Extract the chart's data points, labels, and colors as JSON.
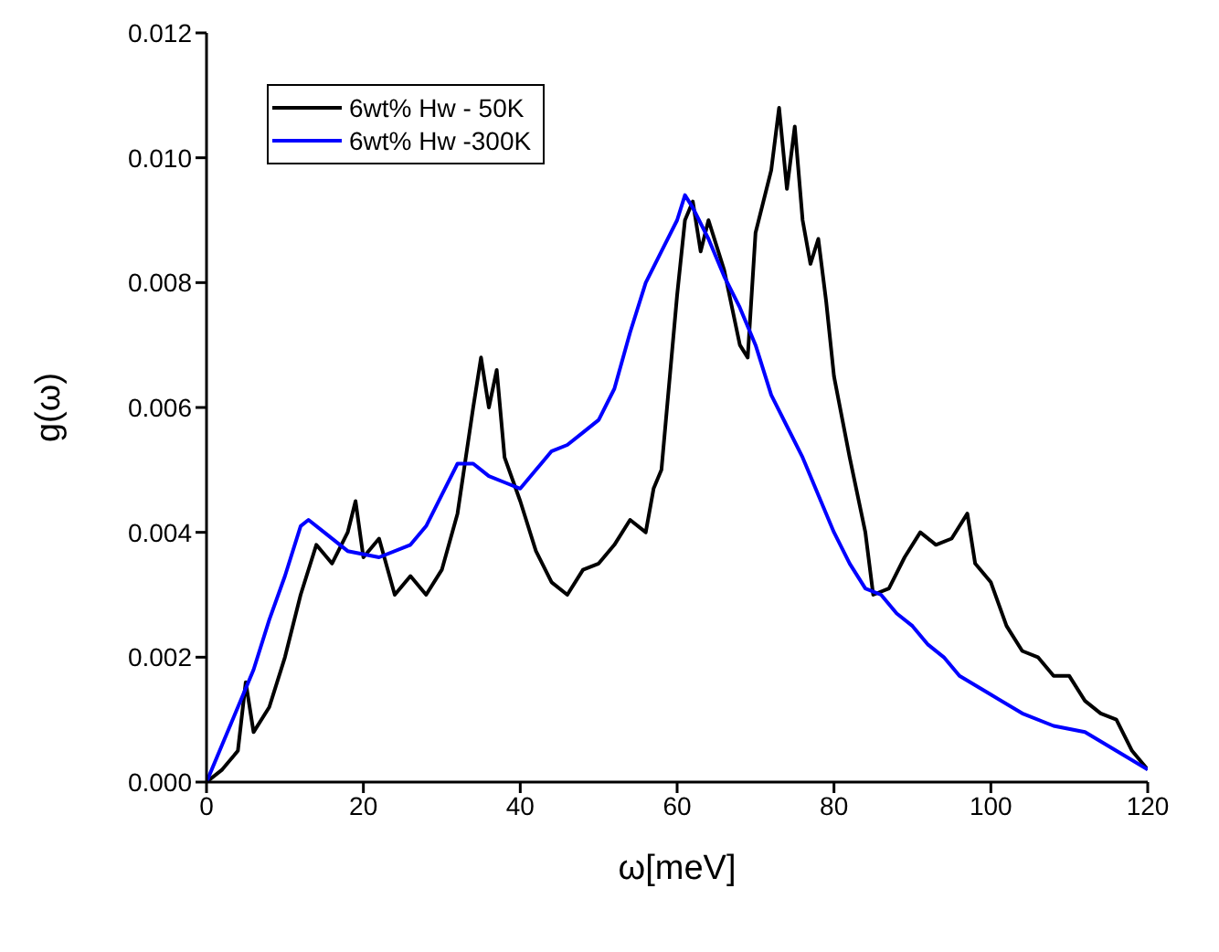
{
  "chart_data": {
    "type": "line",
    "xlabel": "ω[meV]",
    "ylabel": "g(ω)",
    "xlim": [
      0,
      120
    ],
    "xticks": [
      0,
      20,
      40,
      60,
      80,
      100,
      120
    ],
    "ylim": [
      0,
      0.012
    ],
    "yticks": [
      {
        "value": 0,
        "label": "0.000"
      },
      {
        "value": 0.002,
        "label": "0.002"
      },
      {
        "value": 0.004,
        "label": "0.004"
      },
      {
        "value": 0.006,
        "label": "0.006"
      },
      {
        "value": 0.008,
        "label": "0.008"
      },
      {
        "value": 0.01,
        "label": "0.010"
      },
      {
        "value": 0.012,
        "label": "0.012"
      }
    ],
    "grid": false,
    "legend": "top left",
    "marker": "none",
    "line_style": "solid",
    "series": [
      {
        "name": "6wt% Hw - 50K",
        "color": "#000000",
        "x": [
          0,
          2,
          4,
          5,
          6,
          8,
          10,
          12,
          14,
          16,
          18,
          19,
          20,
          22,
          24,
          26,
          28,
          30,
          32,
          34,
          35,
          36,
          37,
          38,
          40,
          42,
          44,
          46,
          48,
          50,
          52,
          54,
          56,
          57,
          58,
          60,
          61,
          62,
          63,
          64,
          66,
          68,
          69,
          70,
          72,
          73,
          74,
          75,
          76,
          77,
          78,
          79,
          80,
          82,
          84,
          85,
          87,
          89,
          91,
          93,
          95,
          97,
          98,
          100,
          102,
          104,
          106,
          108,
          110,
          112,
          114,
          116,
          118,
          120
        ],
        "values": [
          0,
          0.0002,
          0.0005,
          0.0016,
          0.0008,
          0.0012,
          0.002,
          0.003,
          0.0038,
          0.0035,
          0.004,
          0.0045,
          0.0036,
          0.0039,
          0.003,
          0.0033,
          0.003,
          0.0034,
          0.0043,
          0.006,
          0.0068,
          0.006,
          0.0066,
          0.0052,
          0.0045,
          0.0037,
          0.0032,
          0.003,
          0.0034,
          0.0035,
          0.0038,
          0.0042,
          0.004,
          0.0047,
          0.005,
          0.0078,
          0.009,
          0.0093,
          0.0085,
          0.009,
          0.0082,
          0.007,
          0.0068,
          0.0088,
          0.0098,
          0.0108,
          0.0095,
          0.0105,
          0.009,
          0.0083,
          0.0087,
          0.0077,
          0.0065,
          0.0052,
          0.004,
          0.003,
          0.0031,
          0.0036,
          0.004,
          0.0038,
          0.0039,
          0.0043,
          0.0035,
          0.0032,
          0.0025,
          0.0021,
          0.002,
          0.0017,
          0.0017,
          0.0013,
          0.0011,
          0.001,
          0.0005,
          0.0002
        ]
      },
      {
        "name": "6wt% Hw -300K",
        "color": "#0000ff",
        "x": [
          0,
          2,
          4,
          6,
          8,
          10,
          12,
          13,
          15,
          18,
          22,
          26,
          28,
          30,
          32,
          34,
          36,
          38,
          40,
          42,
          44,
          46,
          48,
          50,
          52,
          54,
          56,
          58,
          60,
          61,
          62,
          64,
          66,
          68,
          70,
          72,
          74,
          76,
          78,
          80,
          82,
          84,
          86,
          88,
          90,
          92,
          94,
          96,
          100,
          104,
          108,
          112,
          116,
          120
        ],
        "values": [
          0,
          0.0006,
          0.0012,
          0.0018,
          0.0026,
          0.0033,
          0.0041,
          0.0042,
          0.004,
          0.0037,
          0.0036,
          0.0038,
          0.0041,
          0.0046,
          0.0051,
          0.0051,
          0.0049,
          0.0048,
          0.0047,
          0.005,
          0.0053,
          0.0054,
          0.0056,
          0.0058,
          0.0063,
          0.0072,
          0.008,
          0.0085,
          0.009,
          0.0094,
          0.0092,
          0.0087,
          0.0081,
          0.0076,
          0.007,
          0.0062,
          0.0057,
          0.0052,
          0.0046,
          0.004,
          0.0035,
          0.0031,
          0.003,
          0.0027,
          0.0025,
          0.0022,
          0.002,
          0.0017,
          0.0014,
          0.0011,
          0.0009,
          0.0008,
          0.0005,
          0.0002
        ]
      }
    ]
  }
}
